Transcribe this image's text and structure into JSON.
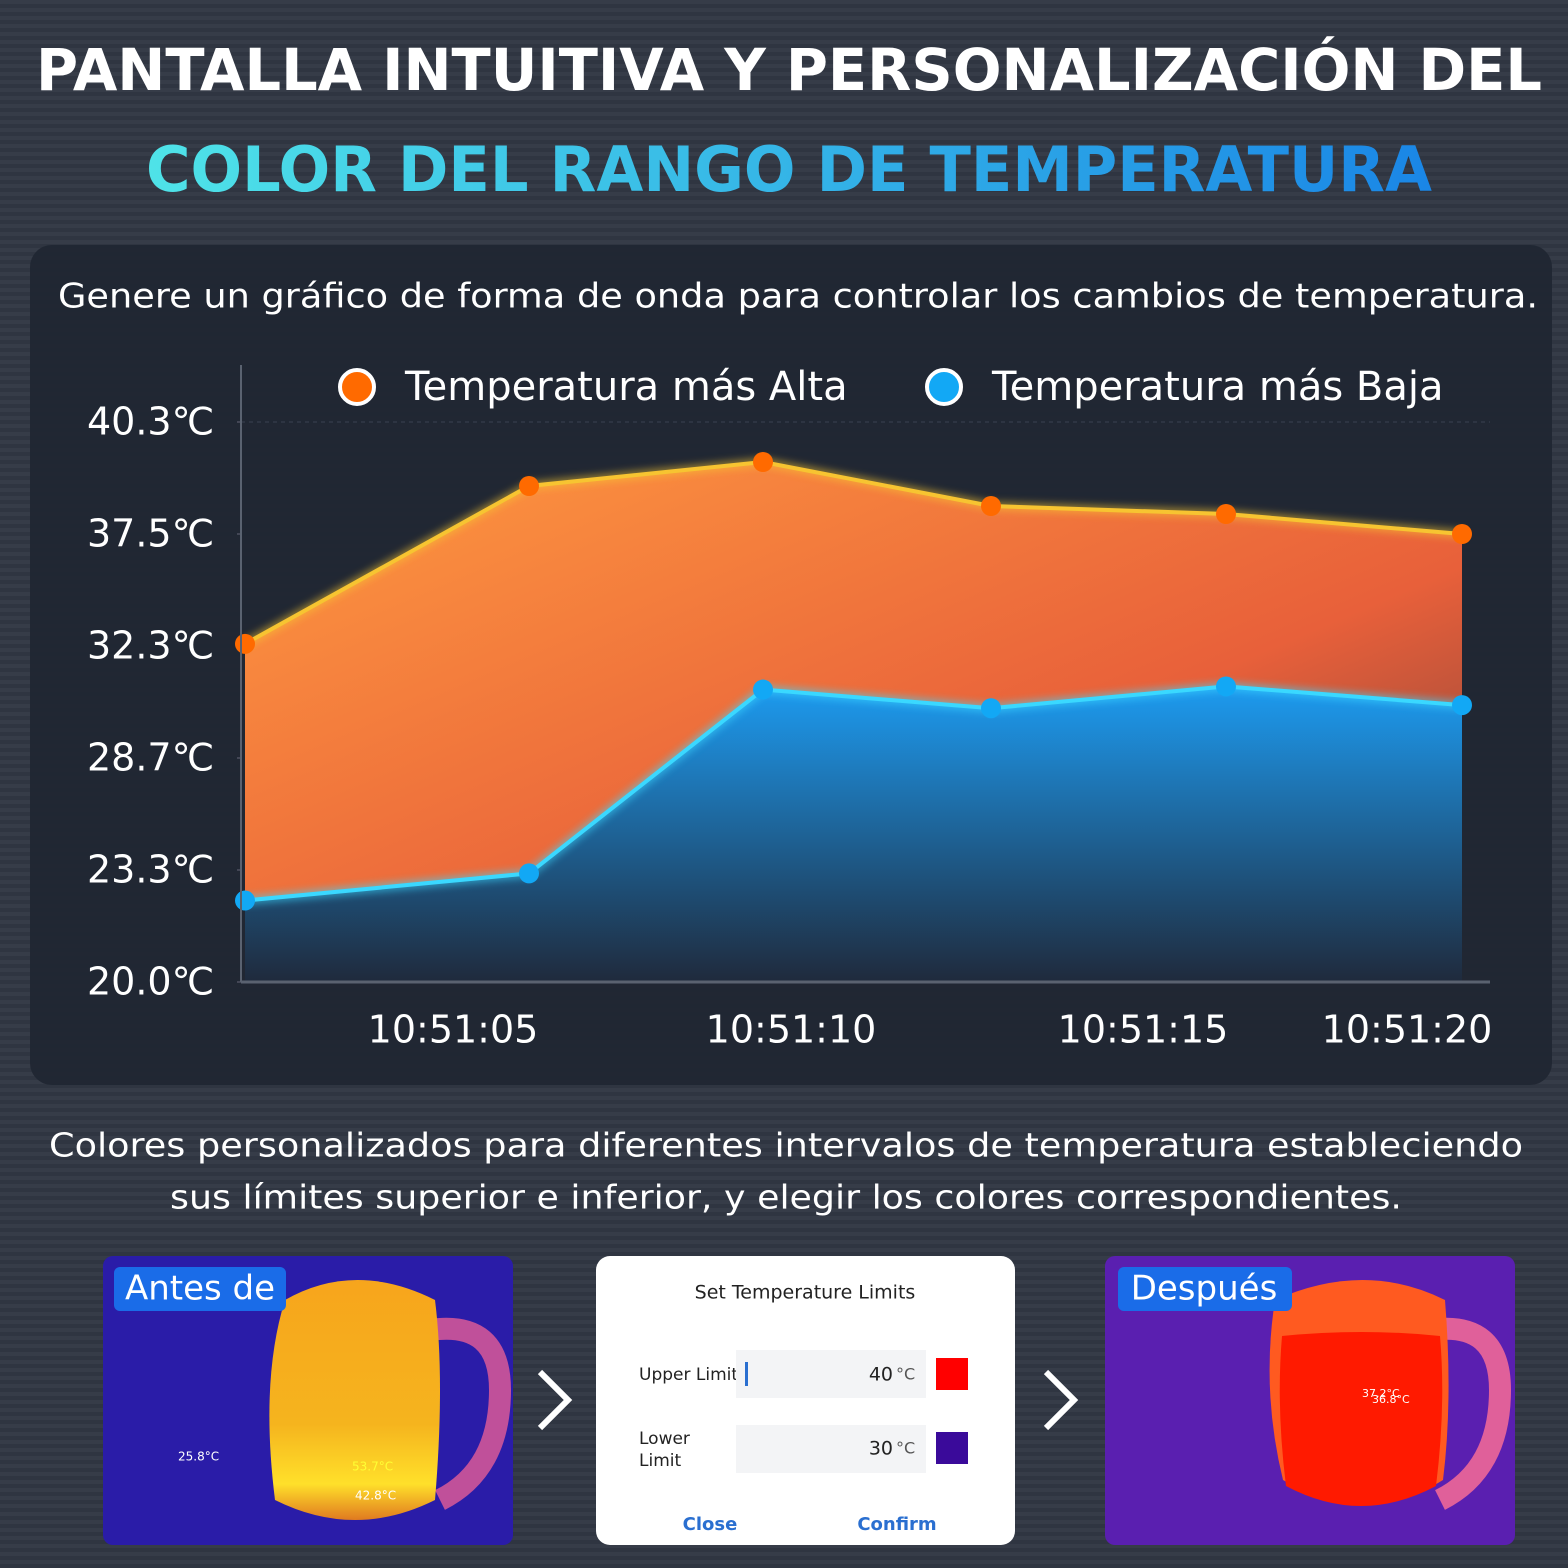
{
  "header": {
    "title_line1": "PANTALLA INTUITIVA Y PERSONALIZACIÓN DEL",
    "title_line2": "COLOR DEL RANGO DE TEMPERATURA"
  },
  "chart_data": {
    "type": "area",
    "subtitle": "Genere un gráfico de forma de onda para controlar los cambios de temperatura.",
    "categories": [
      null,
      null,
      null,
      null,
      null,
      null
    ],
    "x_tick_labels": [
      "10:51:05",
      "10:51:10",
      "10:51:15",
      "10:51:20"
    ],
    "series": [
      {
        "name": "Temperatura más Alta",
        "color": "#ff6a00",
        "line_color": "#f7c431",
        "values": [
          32.4,
          38.7,
          39.3,
          38.2,
          38.0,
          37.5
        ]
      },
      {
        "name": "Temperatura más Baja",
        "color": "#12a8f5",
        "line_color": "#3ad8ff",
        "values": [
          22.4,
          23.2,
          30.9,
          30.3,
          31.0,
          30.4
        ]
      }
    ],
    "ylim": [
      20.0,
      40.3
    ],
    "yticks": [
      {
        "value": 20.0,
        "label": "20.0℃"
      },
      {
        "value": 23.3,
        "label": "23.3℃"
      },
      {
        "value": 28.7,
        "label": "28.7℃"
      },
      {
        "value": 32.3,
        "label": "32.3℃"
      },
      {
        "value": 37.5,
        "label": "37.5℃"
      },
      {
        "value": 40.3,
        "label": "40.3℃"
      }
    ],
    "legend": "top"
  },
  "description": {
    "line1": "Colores personalizados para diferentes intervalos de temperatura estableciendo",
    "line2": "sus límites superior e inferior, y elegir los colores correspondientes."
  },
  "before": {
    "label": "Antes de",
    "readings": [
      "25.8°C",
      "53.7°C",
      "42.8°C"
    ]
  },
  "dialog": {
    "title": "Set Temperature Limits",
    "upper_label": "Upper Limit",
    "upper_value": 40,
    "upper_unit": "°C",
    "upper_color": "#ff0000",
    "lower_label": [
      "Lower",
      "Limit"
    ],
    "lower_value": 30,
    "lower_unit": "°C",
    "lower_color": "#3a0a9a",
    "close": "Close",
    "confirm": "Confirm"
  },
  "after": {
    "label": "Después",
    "readings": [
      "37.2°C",
      "36.8°C"
    ]
  }
}
